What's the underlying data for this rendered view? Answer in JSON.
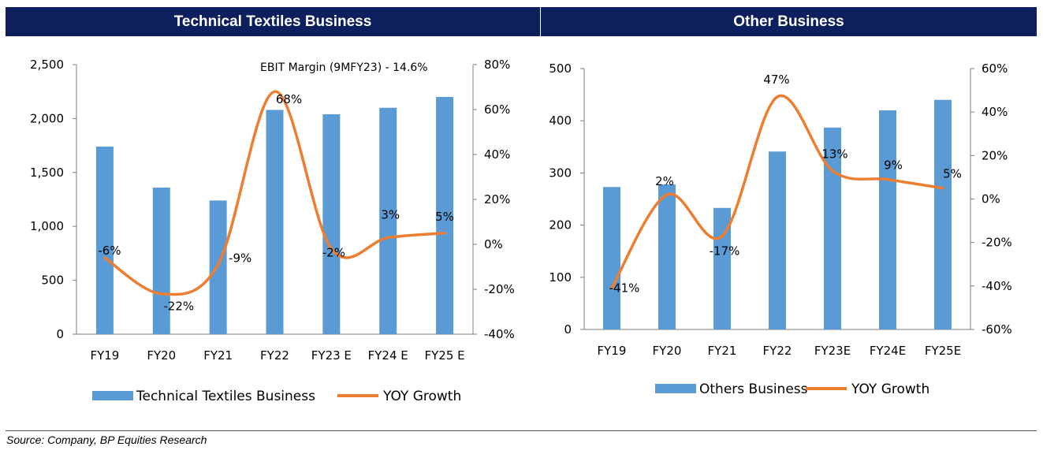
{
  "colors": {
    "header_bg": "#0d1f5c",
    "bar": "#5b9bd5",
    "line": "#ed7d31",
    "axis": "#7f7f7f"
  },
  "chart_data": [
    {
      "type": "bar",
      "title": "Technical Textiles Business",
      "annotation": "EBIT Margin (9MFY23) - 14.6%",
      "categories": [
        "FY19",
        "FY20",
        "FY21",
        "FY22",
        "FY23 E",
        "FY24 E",
        "FY25 E"
      ],
      "y_ticks": [
        "0",
        "500",
        "1,000",
        "1,500",
        "2,000",
        "2,500"
      ],
      "y2_ticks": [
        "-40%",
        "-20%",
        "0%",
        "20%",
        "40%",
        "60%",
        "80%"
      ],
      "ylim": [
        0,
        2500
      ],
      "y2lim": [
        -40,
        80
      ],
      "series": [
        {
          "name": "Technical Textiles Business",
          "type": "bar",
          "values": [
            1740,
            1360,
            1240,
            2080,
            2040,
            2100,
            2200
          ]
        },
        {
          "name": "YOY Growth",
          "type": "line",
          "values": [
            -6,
            -22,
            -9,
            68,
            -2,
            3,
            5
          ],
          "labels": [
            "-6%",
            "-22%",
            "-9%",
            "68%",
            "-2%",
            "3%",
            "5%"
          ]
        }
      ],
      "legend_position": "bottom"
    },
    {
      "type": "bar",
      "title": "Other Business",
      "categories": [
        "FY19",
        "FY20",
        "FY21",
        "FY22",
        "FY23E",
        "FY24E",
        "FY25E"
      ],
      "y_ticks": [
        "0",
        "100",
        "200",
        "300",
        "400",
        "500"
      ],
      "y2_ticks": [
        "-60%",
        "-40%",
        "-20%",
        "0%",
        "20%",
        "40%",
        "60%"
      ],
      "ylim": [
        0,
        500
      ],
      "y2lim": [
        -60,
        60
      ],
      "series": [
        {
          "name": "Others Business",
          "type": "bar",
          "values": [
            273,
            278,
            233,
            341,
            387,
            420,
            440
          ]
        },
        {
          "name": "YOY Growth",
          "type": "line",
          "values": [
            -41,
            2,
            -17,
            47,
            13,
            9,
            5
          ],
          "labels": [
            "-41%",
            "2%",
            "-17%",
            "47%",
            "13%",
            "9%",
            "5%"
          ]
        }
      ],
      "legend_position": "bottom"
    }
  ],
  "footer": {
    "source": "Source: Company, BP Equities Research"
  }
}
